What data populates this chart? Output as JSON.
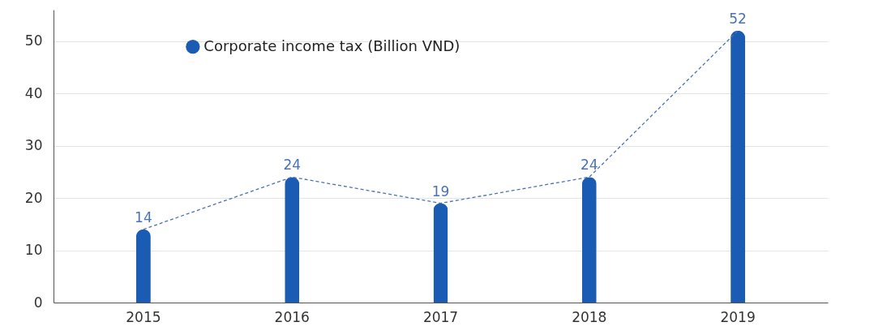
{
  "chart_data": {
    "type": "bar",
    "categories": [
      "2015",
      "2016",
      "2017",
      "2018",
      "2019"
    ],
    "series": [
      {
        "name": "Corporate income tax (Billion VND)",
        "color": "#1a5cb4",
        "values": [
          14,
          24,
          19,
          24,
          52
        ],
        "value_labels": [
          "14",
          "24",
          "19",
          "24",
          "52"
        ]
      },
      {
        "type": "line",
        "color": "#4a72b8",
        "values": [
          14,
          24,
          19,
          24,
          52
        ]
      }
    ],
    "ylim": [
      0,
      56
    ],
    "yticks": [
      0,
      10,
      20,
      30,
      40,
      50
    ],
    "grid": "y",
    "legend": "top left",
    "line_style": "dashed"
  }
}
